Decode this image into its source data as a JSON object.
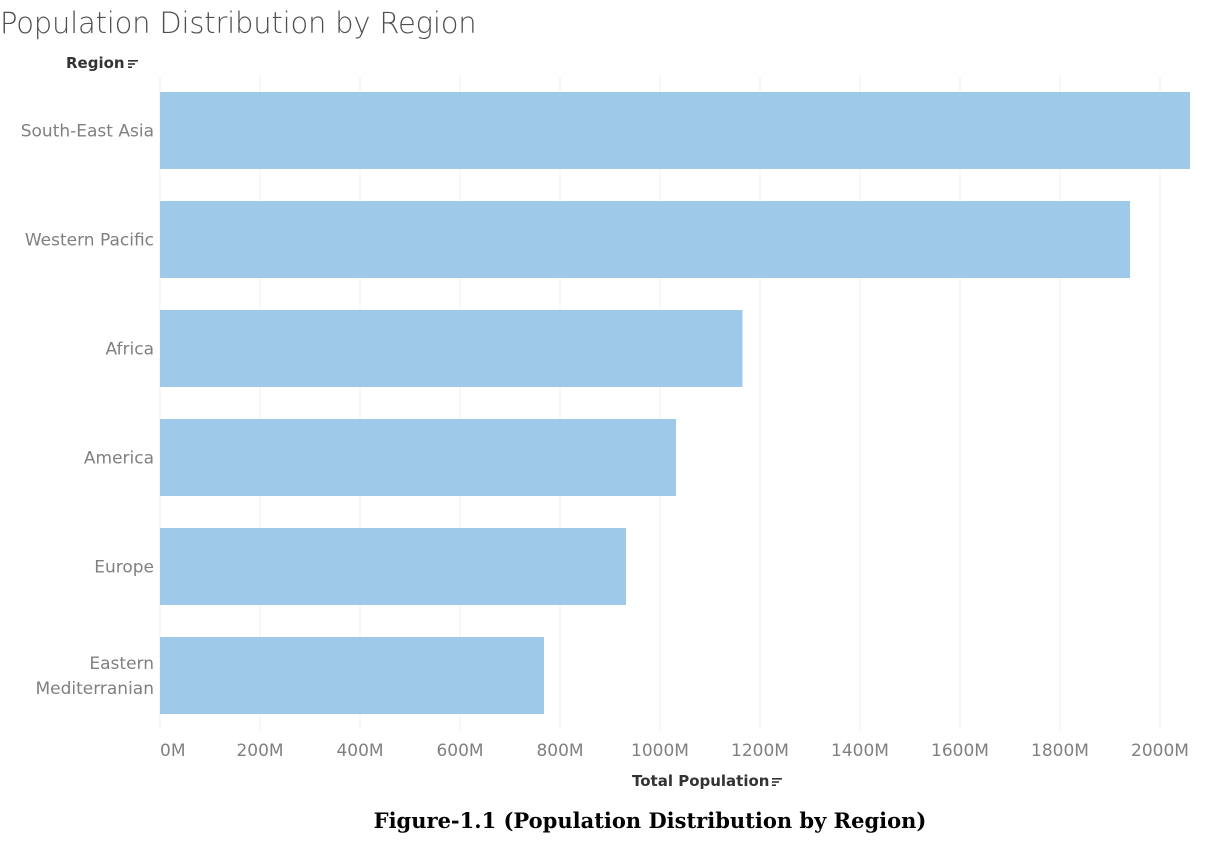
{
  "header": {
    "title": "Population Distribution by Region",
    "row_field_label": "Region"
  },
  "caption": "Figure-1.1 (Population Distribution by Region)",
  "icons": {
    "row_sort": "sort-descending-icon",
    "column_sort": "sort-descending-icon"
  },
  "colors": {
    "bar": "#9fc9e8",
    "grid": "#f0f0f0",
    "axis_text": "#808080"
  },
  "chart_data": {
    "type": "bar",
    "orientation": "horizontal",
    "title": "Population Distribution by Region",
    "xlabel": "Total Population",
    "ylabel": "Region",
    "categories": [
      "South-East Asia",
      "Western Pacific",
      "Africa",
      "America",
      "Europe",
      "Eastern Mediterranian"
    ],
    "category_lines": [
      [
        "South-East Asia"
      ],
      [
        "Western Pacific"
      ],
      [
        "Africa"
      ],
      [
        "America"
      ],
      [
        "Europe"
      ],
      [
        "Eastern",
        "Mediterranian"
      ]
    ],
    "values": [
      2060,
      1940,
      1165,
      1032,
      932,
      768
    ],
    "value_unit": "M",
    "xlim": [
      0,
      2080
    ],
    "xticks": [
      0,
      200,
      400,
      600,
      800,
      1000,
      1200,
      1400,
      1600,
      1800,
      2000
    ],
    "xtick_labels": [
      "0M",
      "200M",
      "400M",
      "600M",
      "800M",
      "1000M",
      "1200M",
      "1400M",
      "1600M",
      "1800M",
      "2000M"
    ],
    "grid": true,
    "legend": "none"
  }
}
